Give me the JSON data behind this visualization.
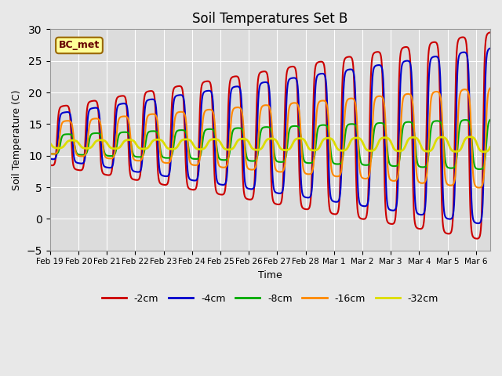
{
  "title": "Soil Temperatures Set B",
  "xlabel": "Time",
  "ylabel": "Soil Temperature (C)",
  "ylim": [
    -5,
    30
  ],
  "background_color": "#e8e8e8",
  "plot_bg_color": "#dcdcdc",
  "annotation_text": "BC_met",
  "annotation_box_color": "#ffff99",
  "annotation_border_color": "#996600",
  "tick_labels": [
    "Feb 19",
    "Feb 20",
    "Feb 21",
    "Feb 22",
    "Feb 23",
    "Feb 24",
    "Feb 25",
    "Feb 26",
    "Feb 27",
    "Feb 28",
    "Mar 1",
    "Mar 2",
    "Mar 3",
    "Mar 4",
    "Mar 5",
    "Mar 6"
  ],
  "legend_labels": [
    "-2cm",
    "-4cm",
    "-8cm",
    "-16cm",
    "-32cm"
  ],
  "legend_colors": [
    "#cc0000",
    "#0000cc",
    "#00aa00",
    "#ff8800",
    "#dddd00"
  ],
  "line_widths": [
    1.5,
    1.5,
    1.5,
    1.5,
    2.0
  ],
  "grid_color": "#ffffff",
  "n_points": 2000
}
